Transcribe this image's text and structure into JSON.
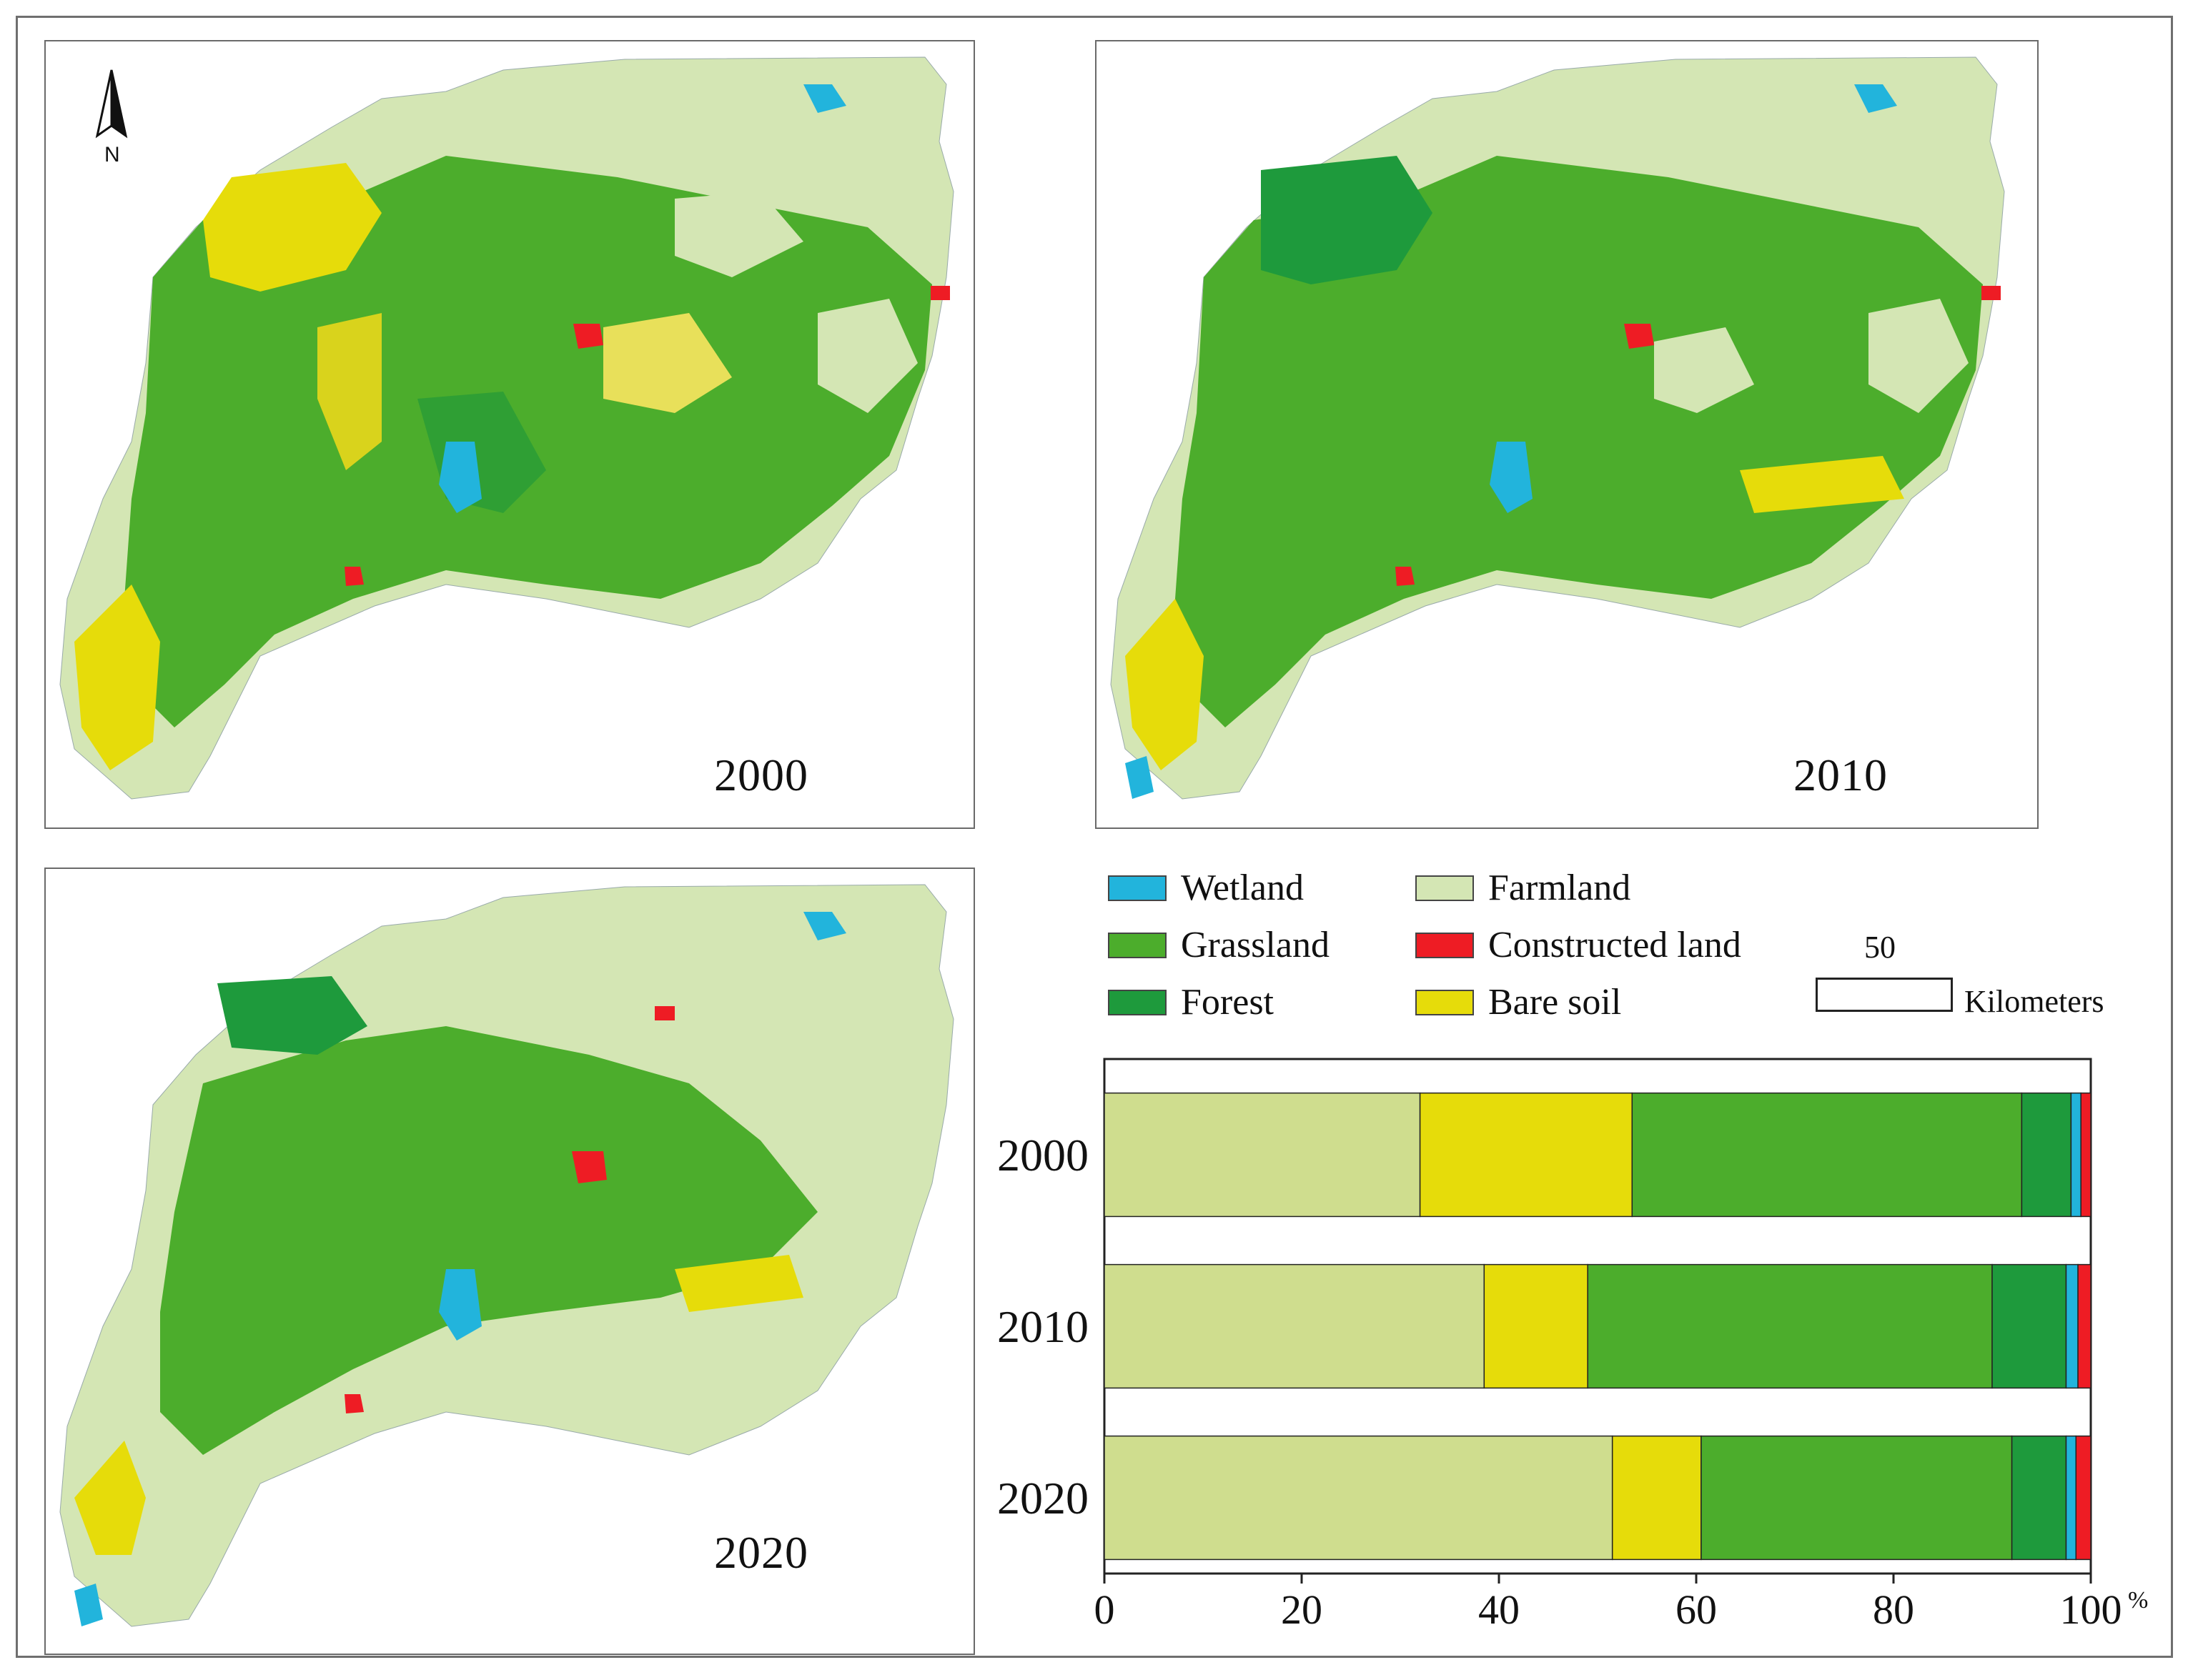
{
  "maps": [
    {
      "year_label": "2000"
    },
    {
      "year_label": "2010"
    },
    {
      "year_label": "2020"
    }
  ],
  "north_arrow": {
    "label": "N"
  },
  "legend": {
    "items": [
      {
        "name": "Wetland",
        "color": "#22b4dc"
      },
      {
        "name": "Farmland",
        "color": "#d4e6b4"
      },
      {
        "name": "Grassland",
        "color": "#4cad2c"
      },
      {
        "name": "Constructed land",
        "color": "#ee1c24"
      },
      {
        "name": "Forest",
        "color": "#1e9a3c"
      },
      {
        "name": "Bare soil",
        "color": "#e6dc0a"
      }
    ]
  },
  "scale_bar": {
    "value": "50",
    "unit": "Kilometers"
  },
  "chart_data": {
    "type": "bar",
    "orientation": "horizontal",
    "stacked": true,
    "categories": [
      "2000",
      "2010",
      "2020"
    ],
    "series": [
      {
        "name": "Farmland",
        "color": "#cfdd8e",
        "values": [
          32.0,
          38.5,
          51.5
        ]
      },
      {
        "name": "Bare soil",
        "color": "#e6dc0a",
        "values": [
          21.5,
          10.5,
          9.0
        ]
      },
      {
        "name": "Grassland",
        "color": "#4cad2c",
        "values": [
          39.5,
          41.0,
          31.5
        ]
      },
      {
        "name": "Forest",
        "color": "#1e9a3c",
        "values": [
          5.0,
          7.5,
          5.5
        ]
      },
      {
        "name": "Wetland",
        "color": "#22b4dc",
        "values": [
          1.0,
          1.2,
          1.0
        ]
      },
      {
        "name": "Constructed land",
        "color": "#ee1c24",
        "values": [
          1.0,
          1.3,
          1.5
        ]
      }
    ],
    "xlim": [
      0,
      100
    ],
    "xticks": [
      "0",
      "20",
      "40",
      "60",
      "80",
      "100"
    ],
    "unit_label": "%",
    "grid": false,
    "legend": "none"
  }
}
